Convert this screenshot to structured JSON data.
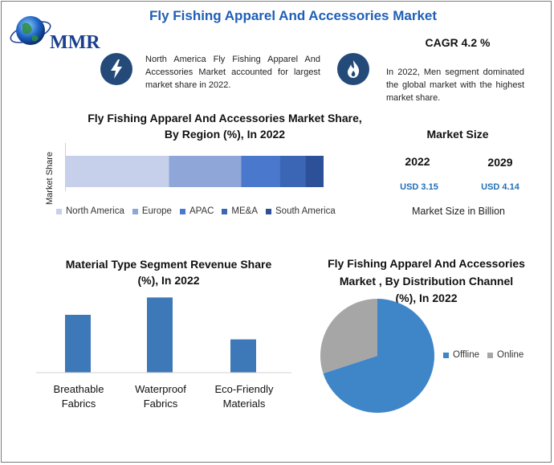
{
  "logo": {
    "text": "MMR"
  },
  "header": {
    "title": "Fly Fishing Apparel And Accessories Market",
    "cagr": "CAGR 4.2 %"
  },
  "info": [
    {
      "icon": "lightning-icon",
      "text": "North America Fly Fishing Apparel And Accessories Market accounted for largest market share in 2022."
    },
    {
      "icon": "flame-icon",
      "text": "In 2022, Men segment dominated the global market with the highest market share."
    }
  ],
  "market_size": {
    "title": "Market Size",
    "years": [
      "2022",
      "2029"
    ],
    "values": [
      "USD 3.15",
      "USD 4.14"
    ],
    "note": "Market Size in Billion"
  },
  "colors": {
    "title_blue": "#1f5fb7",
    "value_blue": "#1f6fb8",
    "icon_circle": "#244a7a",
    "north_america": "#c7d0ea",
    "europe": "#8fa6d8",
    "apac": "#4a78cc",
    "mea": "#3b66b6",
    "south_america": "#2c5199",
    "bar": "#3d78b8",
    "offline": "#3f86c8",
    "online": "#a6a6a6"
  },
  "chart_data": [
    {
      "type": "bar",
      "orientation": "horizontal-stacked",
      "title": "Fly Fishing Apparel And Accessories Market Share, By Region (%), In 2022",
      "title_lines": [
        "Fly Fishing Apparel And Accessories Market Share,",
        "By Region (%), In 2022"
      ],
      "ylabel": "Market Share",
      "categories": [
        "Market Share"
      ],
      "series": [
        {
          "name": "North America",
          "values": [
            40
          ]
        },
        {
          "name": "Europe",
          "values": [
            28
          ]
        },
        {
          "name": "APAC",
          "values": [
            15
          ]
        },
        {
          "name": "ME&A",
          "values": [
            10
          ]
        },
        {
          "name": "South America",
          "values": [
            7
          ]
        }
      ],
      "legend": "bottom"
    },
    {
      "type": "bar",
      "title": "Material Type Segment Revenue Share (%), In 2022",
      "title_lines": [
        "Material Type Segment Revenue Share",
        "(%), In 2022"
      ],
      "categories": [
        "Breathable Fabrics",
        "Waterproof Fabrics",
        "Eco-Friendly Materials"
      ],
      "category_lines": [
        [
          "Breathable",
          "Fabrics"
        ],
        [
          "Waterproof",
          "Fabrics"
        ],
        [
          "Eco-Friendly",
          "Materials"
        ]
      ],
      "values": [
        40,
        52,
        23
      ],
      "ylim": [
        0,
        60
      ],
      "grid": false
    },
    {
      "type": "pie",
      "title": "Fly Fishing Apparel And Accessories Market , By Distribution Channel (%), In 2022",
      "title_lines": [
        "Fly Fishing Apparel And Accessories",
        "Market , By Distribution Channel",
        "(%), In 2022"
      ],
      "categories": [
        "Offline",
        "Online"
      ],
      "values": [
        70,
        30
      ],
      "legend": "right"
    }
  ]
}
